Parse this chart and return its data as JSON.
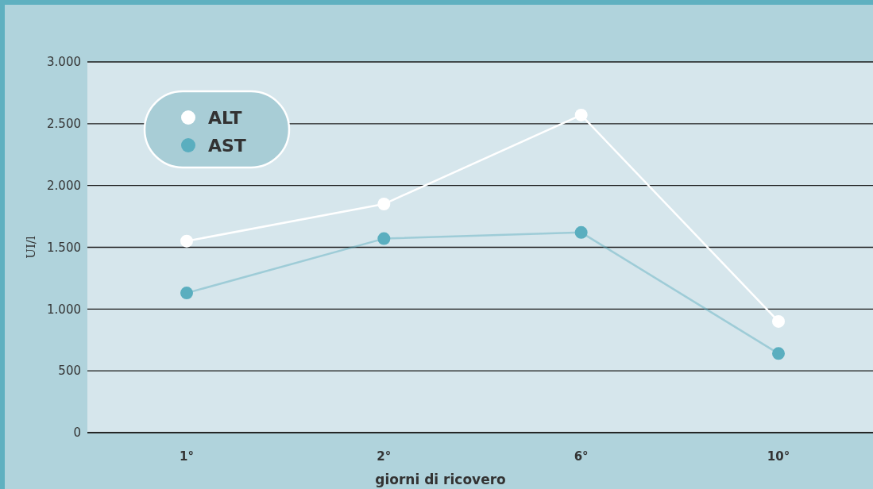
{
  "chart_data": {
    "type": "line",
    "xlabel": "giorni di ricovero",
    "ylabel": "UI/l",
    "categories": [
      "1°",
      "2°",
      "6°",
      "10°"
    ],
    "series": [
      {
        "name": "ALT",
        "color": "#ffffff",
        "values": [
          1550,
          1850,
          2570,
          900
        ]
      },
      {
        "name": "AST",
        "color": "#5aaebf",
        "values": [
          1130,
          1570,
          1620,
          640
        ]
      }
    ],
    "ylim": [
      0,
      3000
    ],
    "yticks": [
      {
        "value": 0,
        "label": "0"
      },
      {
        "value": 500,
        "label": "500"
      },
      {
        "value": 1000,
        "label": "1.000"
      },
      {
        "value": 1500,
        "label": "1.500"
      },
      {
        "value": 2000,
        "label": "2.000"
      },
      {
        "value": 2500,
        "label": "2.500"
      },
      {
        "value": 3000,
        "label": "3.000"
      }
    ],
    "grid": "y",
    "legend": "top left",
    "marker": "circle"
  }
}
